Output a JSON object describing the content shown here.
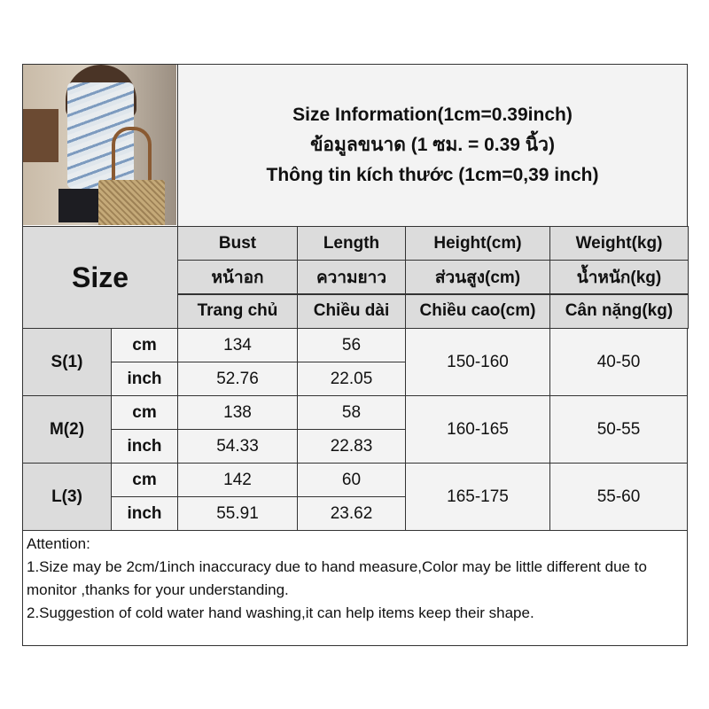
{
  "title": {
    "line1": "Size Information(1cm=0.39inch)",
    "line2": "ข้อมูลขนาด (1 ซม. = 0.39 นิ้ว)",
    "line3": "Thông tin kích thước (1cm=0,39 inch)"
  },
  "size_header": "Size",
  "columns": [
    {
      "en": "Bust",
      "th": "หน้าอก",
      "vi": "Trang chủ"
    },
    {
      "en": "Length",
      "th": "ความยาว",
      "vi": "Chiều dài"
    },
    {
      "en": "Height(cm)",
      "th": "ส่วนสูง(cm)",
      "vi": "Chiều cao(cm)"
    },
    {
      "en": "Weight(kg)",
      "th": "น้ำหนัก(kg)",
      "vi": "Cân nặng(kg)"
    }
  ],
  "unit_cm": "cm",
  "unit_inch": "inch",
  "rows": [
    {
      "size": "S(1)",
      "bust_cm": "134",
      "length_cm": "56",
      "bust_inch": "52.76",
      "length_inch": "22.05",
      "height": "150-160",
      "weight": "40-50"
    },
    {
      "size": "M(2)",
      "bust_cm": "138",
      "length_cm": "58",
      "bust_inch": "54.33",
      "length_inch": "22.83",
      "height": "160-165",
      "weight": "50-55"
    },
    {
      "size": "L(3)",
      "bust_cm": "142",
      "length_cm": "60",
      "bust_inch": "55.91",
      "length_inch": "23.62",
      "height": "165-175",
      "weight": "55-60"
    }
  ],
  "attention": {
    "heading": "Attention:",
    "line1": "1.Size may be 2cm/1inch inaccuracy due to hand measure,Color may be little different due to monitor ,thanks for your understanding.",
    "line2": "2.Suggestion of cold water hand washing,it can help items keep their shape."
  }
}
